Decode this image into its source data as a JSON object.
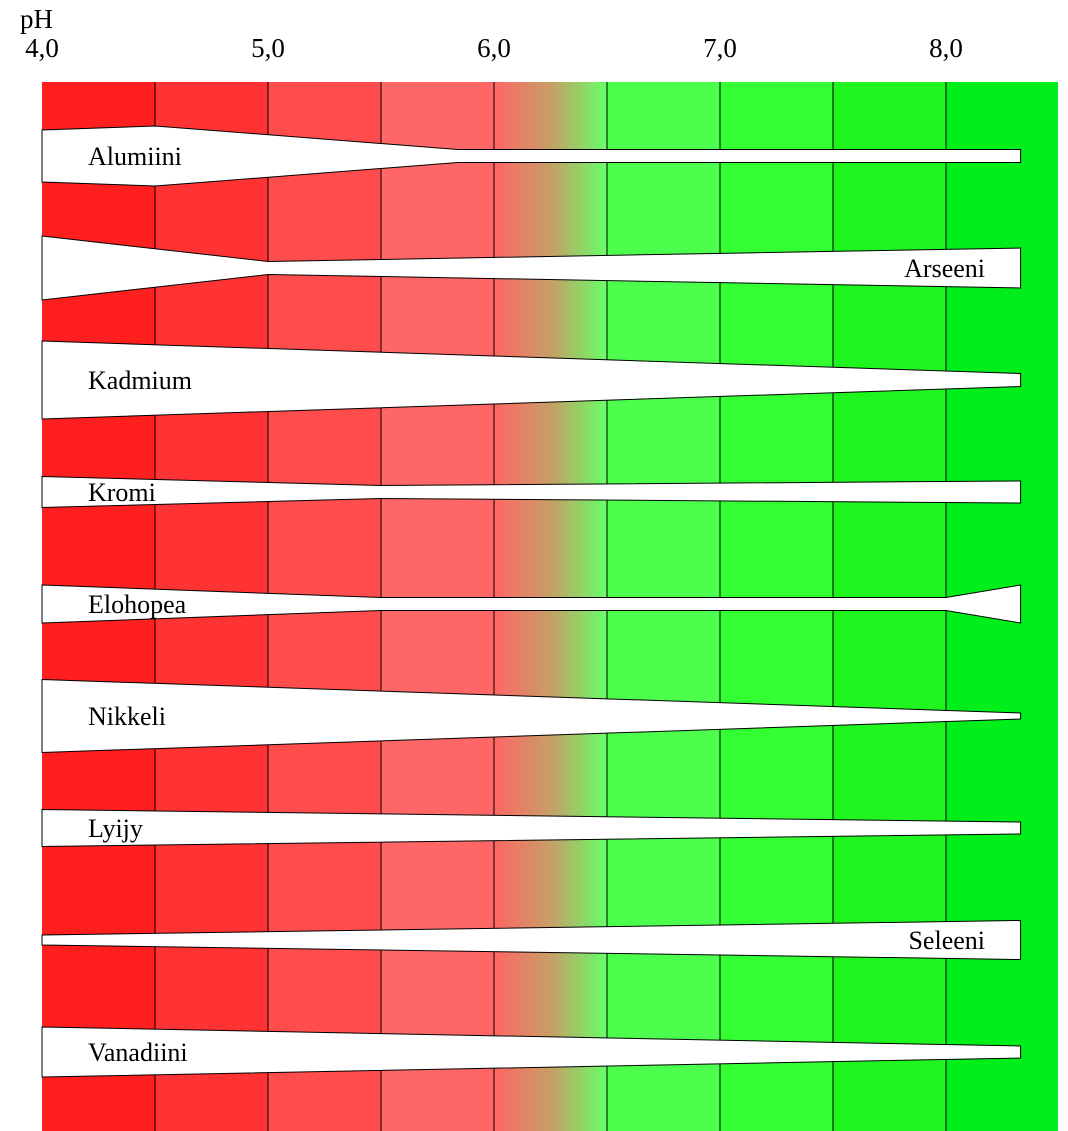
{
  "axis": {
    "label": "pH",
    "ticks": [
      {
        "value": 4.0,
        "label": "4,0"
      },
      {
        "value": 5.0,
        "label": "5,0"
      },
      {
        "value": 6.0,
        "label": "6,0"
      },
      {
        "value": 7.0,
        "label": "7,0"
      },
      {
        "value": 8.0,
        "label": "8,0"
      }
    ],
    "range": [
      3.875,
      8.375
    ]
  },
  "colors": {
    "bands": [
      {
        "from": 4.0,
        "to": 4.5,
        "color": "#ff1f1f"
      },
      {
        "from": 4.5,
        "to": 5.0,
        "color": "#ff3333"
      },
      {
        "from": 5.0,
        "to": 5.5,
        "color": "#ff4d4d"
      },
      {
        "from": 5.5,
        "to": 6.0,
        "color": "#ff6666"
      },
      {
        "from": 6.0,
        "to": 6.5,
        "gradient": [
          "#ff6666",
          "#c79e66",
          "#66ff66"
        ]
      },
      {
        "from": 6.5,
        "to": 7.0,
        "color": "#4dff4d"
      },
      {
        "from": 7.0,
        "to": 7.5,
        "color": "#33ff33"
      },
      {
        "from": 7.5,
        "to": 8.0,
        "color": "#1ff51f"
      },
      {
        "from": 8.0,
        "to": 8.5,
        "color": "#00ee1a"
      }
    ],
    "band_line": "#000000",
    "metal_fill": "#ffffff"
  },
  "metals": [
    {
      "name": "Alumiini",
      "label_side": "left",
      "profile": [
        [
          4.0,
          0.52
        ],
        [
          4.5,
          0.6
        ],
        [
          5.84,
          0.13
        ],
        [
          8.33,
          0.13
        ]
      ]
    },
    {
      "name": "Arseeni",
      "label_side": "right",
      "profile": [
        [
          4.0,
          0.64
        ],
        [
          5.0,
          0.13
        ],
        [
          8.33,
          0.4
        ]
      ]
    },
    {
      "name": "Kadmium",
      "label_side": "left",
      "profile": [
        [
          4.0,
          0.78
        ],
        [
          8.33,
          0.13
        ]
      ]
    },
    {
      "name": "Kromi",
      "label_side": "left",
      "profile": [
        [
          4.0,
          0.31
        ],
        [
          5.5,
          0.13
        ],
        [
          8.33,
          0.22
        ]
      ]
    },
    {
      "name": "Elohopea",
      "label_side": "left",
      "profile": [
        [
          4.0,
          0.38
        ],
        [
          5.5,
          0.13
        ],
        [
          8.0,
          0.13
        ],
        [
          8.33,
          0.38
        ]
      ]
    },
    {
      "name": "Nikkeli",
      "label_side": "left",
      "profile": [
        [
          4.0,
          0.73
        ],
        [
          8.33,
          0.06
        ]
      ]
    },
    {
      "name": "Lyijy",
      "label_side": "left",
      "profile": [
        [
          4.0,
          0.37
        ],
        [
          8.33,
          0.12
        ]
      ]
    },
    {
      "name": "Seleeni",
      "label_side": "right",
      "profile": [
        [
          4.0,
          0.1
        ],
        [
          8.33,
          0.39
        ]
      ]
    },
    {
      "name": "Vanadiini",
      "label_side": "left",
      "profile": [
        [
          4.0,
          0.5
        ],
        [
          8.33,
          0.12
        ]
      ]
    }
  ]
}
